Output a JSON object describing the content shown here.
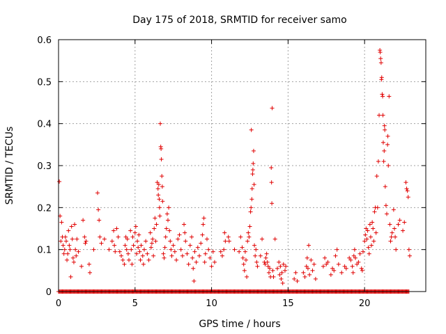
{
  "chart_data": {
    "type": "scatter",
    "title": "Day 175 of 2018, SRMTID for receiver samo",
    "xlabel": "GPS time / hours",
    "ylabel": "SRMTID / TECUs",
    "xlim": [
      0,
      24
    ],
    "ylim": [
      0,
      0.6
    ],
    "xticks": [
      0,
      5,
      10,
      15,
      20
    ],
    "xtick_labels": [
      "0",
      "5",
      "10",
      "15",
      "20"
    ],
    "yticks": [
      0,
      0.1,
      0.2,
      0.3,
      0.4,
      0.5,
      0.6
    ],
    "ytick_labels": [
      "0",
      "0.1",
      "0.2",
      "0.3",
      "0.4",
      "0.5",
      "0.6"
    ],
    "grid": true,
    "marker": "plus",
    "color": "#e00000",
    "series": [
      {
        "name": "SRMTID",
        "points": [
          [
            0.05,
            0.262
          ],
          [
            0.1,
            0.18
          ],
          [
            0.15,
            0.12
          ],
          [
            0.2,
            0.165
          ],
          [
            0.25,
            0.13
          ],
          [
            0.3,
            0.11
          ],
          [
            0.35,
            0.09
          ],
          [
            0.4,
            0.1
          ],
          [
            0.45,
            0.13
          ],
          [
            0.5,
            0.12
          ],
          [
            0.55,
            0.075
          ],
          [
            0.6,
            0.09
          ],
          [
            0.65,
            0.145
          ],
          [
            0.7,
            0.11
          ],
          [
            0.75,
            0.1
          ],
          [
            0.8,
            0.035
          ],
          [
            0.85,
            0.155
          ],
          [
            0.9,
            0.125
          ],
          [
            0.95,
            0.08
          ],
          [
            1.0,
            0.07
          ],
          [
            1.05,
            0.16
          ],
          [
            1.1,
            0.1
          ],
          [
            1.15,
            0.085
          ],
          [
            1.2,
            0.125
          ],
          [
            1.3,
            0.095
          ],
          [
            1.5,
            0.06
          ],
          [
            1.6,
            0.17
          ],
          [
            1.7,
            0.13
          ],
          [
            1.75,
            0.115
          ],
          [
            1.8,
            0.12
          ],
          [
            2.0,
            0.065
          ],
          [
            2.05,
            0.045
          ],
          [
            2.3,
            0.1
          ],
          [
            2.55,
            0.235
          ],
          [
            2.6,
            0.195
          ],
          [
            2.65,
            0.17
          ],
          [
            2.7,
            0.13
          ],
          [
            2.8,
            0.115
          ],
          [
            3.0,
            0.125
          ],
          [
            3.3,
            0.1
          ],
          [
            3.5,
            0.12
          ],
          [
            3.6,
            0.145
          ],
          [
            3.65,
            0.11
          ],
          [
            3.7,
            0.095
          ],
          [
            3.8,
            0.15
          ],
          [
            3.9,
            0.13
          ],
          [
            4.0,
            0.095
          ],
          [
            4.1,
            0.085
          ],
          [
            4.2,
            0.075
          ],
          [
            4.3,
            0.065
          ],
          [
            4.35,
            0.11
          ],
          [
            4.4,
            0.13
          ],
          [
            4.45,
            0.1
          ],
          [
            4.5,
            0.125
          ],
          [
            4.55,
            0.09
          ],
          [
            4.6,
            0.075
          ],
          [
            4.7,
            0.145
          ],
          [
            4.75,
            0.1
          ],
          [
            4.8,
            0.065
          ],
          [
            4.85,
            0.13
          ],
          [
            4.9,
            0.11
          ],
          [
            5.0,
            0.14
          ],
          [
            5.05,
            0.155
          ],
          [
            5.1,
            0.09
          ],
          [
            5.15,
            0.12
          ],
          [
            5.2,
            0.105
          ],
          [
            5.25,
            0.135
          ],
          [
            5.3,
            0.095
          ],
          [
            5.35,
            0.075
          ],
          [
            5.4,
            0.11
          ],
          [
            5.5,
            0.085
          ],
          [
            5.55,
            0.065
          ],
          [
            5.6,
            0.1
          ],
          [
            5.7,
            0.12
          ],
          [
            5.8,
            0.09
          ],
          [
            5.9,
            0.075
          ],
          [
            6.0,
            0.14
          ],
          [
            6.05,
            0.105
          ],
          [
            6.1,
            0.115
          ],
          [
            6.15,
            0.125
          ],
          [
            6.2,
            0.085
          ],
          [
            6.25,
            0.15
          ],
          [
            6.3,
            0.175
          ],
          [
            6.35,
            0.12
          ],
          [
            6.4,
            0.16
          ],
          [
            6.45,
            0.26
          ],
          [
            6.5,
            0.245
          ],
          [
            6.52,
            0.23
          ],
          [
            6.55,
            0.255
          ],
          [
            6.58,
            0.22
          ],
          [
            6.6,
            0.2
          ],
          [
            6.62,
            0.18
          ],
          [
            6.65,
            0.4
          ],
          [
            6.68,
            0.345
          ],
          [
            6.7,
            0.34
          ],
          [
            6.72,
            0.315
          ],
          [
            6.75,
            0.275
          ],
          [
            6.78,
            0.25
          ],
          [
            6.8,
            0.215
          ],
          [
            6.85,
            0.09
          ],
          [
            6.9,
            0.08
          ],
          [
            6.95,
            0.105
          ],
          [
            7.0,
            0.13
          ],
          [
            7.05,
            0.15
          ],
          [
            7.1,
            0.185
          ],
          [
            7.15,
            0.17
          ],
          [
            7.2,
            0.2
          ],
          [
            7.25,
            0.145
          ],
          [
            7.3,
            0.12
          ],
          [
            7.35,
            0.1
          ],
          [
            7.4,
            0.085
          ],
          [
            7.5,
            0.11
          ],
          [
            7.6,
            0.095
          ],
          [
            7.7,
            0.075
          ],
          [
            7.8,
            0.125
          ],
          [
            7.9,
            0.135
          ],
          [
            8.0,
            0.1
          ],
          [
            8.1,
            0.085
          ],
          [
            8.2,
            0.16
          ],
          [
            8.25,
            0.14
          ],
          [
            8.3,
            0.12
          ],
          [
            8.4,
            0.09
          ],
          [
            8.5,
            0.065
          ],
          [
            8.6,
            0.11
          ],
          [
            8.7,
            0.13
          ],
          [
            8.75,
            0.08
          ],
          [
            8.8,
            0.055
          ],
          [
            8.85,
            0.025
          ],
          [
            8.9,
            0.095
          ],
          [
            9.0,
            0.07
          ],
          [
            9.1,
            0.105
          ],
          [
            9.2,
            0.085
          ],
          [
            9.3,
            0.115
          ],
          [
            9.4,
            0.135
          ],
          [
            9.45,
            0.16
          ],
          [
            9.5,
            0.175
          ],
          [
            9.55,
            0.07
          ],
          [
            9.6,
            0.09
          ],
          [
            9.7,
            0.125
          ],
          [
            9.8,
            0.1
          ],
          [
            9.9,
            0.08
          ],
          [
            10.0,
            0.06
          ],
          [
            10.1,
            0.095
          ],
          [
            10.2,
            0.07
          ],
          [
            10.6,
            0.095
          ],
          [
            10.7,
            0.085
          ],
          [
            10.8,
            0.1
          ],
          [
            10.85,
            0.14
          ],
          [
            10.9,
            0.12
          ],
          [
            11.1,
            0.13
          ],
          [
            11.15,
            0.12
          ],
          [
            11.5,
            0.1
          ],
          [
            11.8,
            0.095
          ],
          [
            11.9,
            0.13
          ],
          [
            12.0,
            0.105
          ],
          [
            12.05,
            0.08
          ],
          [
            12.1,
            0.065
          ],
          [
            12.15,
            0.05
          ],
          [
            12.2,
            0.095
          ],
          [
            12.25,
            0.075
          ],
          [
            12.3,
            0.035
          ],
          [
            12.35,
            0.12
          ],
          [
            12.4,
            0.14
          ],
          [
            12.45,
            0.13
          ],
          [
            12.5,
            0.155
          ],
          [
            12.55,
            0.19
          ],
          [
            12.58,
            0.2
          ],
          [
            12.6,
            0.385
          ],
          [
            12.63,
            0.22
          ],
          [
            12.65,
            0.245
          ],
          [
            12.68,
            0.28
          ],
          [
            12.7,
            0.29
          ],
          [
            12.72,
            0.305
          ],
          [
            12.75,
            0.335
          ],
          [
            12.78,
            0.255
          ],
          [
            12.8,
            0.11
          ],
          [
            12.85,
            0.085
          ],
          [
            12.9,
            0.1
          ],
          [
            12.95,
            0.07
          ],
          [
            13.0,
            0.06
          ],
          [
            13.2,
            0.085
          ],
          [
            13.3,
            0.125
          ],
          [
            13.45,
            0.07
          ],
          [
            13.5,
            0.065
          ],
          [
            13.55,
            0.08
          ],
          [
            13.6,
            0.09
          ],
          [
            13.65,
            0.07
          ],
          [
            13.7,
            0.06
          ],
          [
            13.75,
            0.045
          ],
          [
            13.8,
            0.055
          ],
          [
            13.85,
            0.035
          ],
          [
            13.9,
            0.295
          ],
          [
            13.92,
            0.26
          ],
          [
            13.94,
            0.21
          ],
          [
            13.96,
            0.437
          ],
          [
            14.0,
            0.05
          ],
          [
            14.05,
            0.035
          ],
          [
            14.15,
            0.125
          ],
          [
            14.3,
            0.055
          ],
          [
            14.4,
            0.07
          ],
          [
            14.45,
            0.04
          ],
          [
            14.5,
            0.06
          ],
          [
            14.55,
            0.03
          ],
          [
            14.6,
            0.045
          ],
          [
            14.65,
            0.02
          ],
          [
            14.7,
            0.065
          ],
          [
            14.8,
            0.05
          ],
          [
            14.85,
            0.06
          ],
          [
            15.4,
            0.03
          ],
          [
            15.5,
            0.045
          ],
          [
            15.6,
            0.025
          ],
          [
            16.0,
            0.045
          ],
          [
            16.1,
            0.035
          ],
          [
            16.2,
            0.06
          ],
          [
            16.25,
            0.08
          ],
          [
            16.3,
            0.055
          ],
          [
            16.35,
            0.11
          ],
          [
            16.4,
            0.04
          ],
          [
            16.5,
            0.075
          ],
          [
            16.6,
            0.05
          ],
          [
            16.7,
            0.065
          ],
          [
            16.8,
            0.03
          ],
          [
            17.3,
            0.06
          ],
          [
            17.4,
            0.08
          ],
          [
            17.5,
            0.065
          ],
          [
            17.6,
            0.07
          ],
          [
            17.8,
            0.04
          ],
          [
            17.9,
            0.055
          ],
          [
            18.0,
            0.05
          ],
          [
            18.1,
            0.085
          ],
          [
            18.2,
            0.1
          ],
          [
            18.3,
            0.065
          ],
          [
            18.5,
            0.045
          ],
          [
            18.7,
            0.06
          ],
          [
            18.8,
            0.055
          ],
          [
            19.0,
            0.08
          ],
          [
            19.1,
            0.075
          ],
          [
            19.2,
            0.06
          ],
          [
            19.25,
            0.045
          ],
          [
            19.3,
            0.085
          ],
          [
            19.35,
            0.1
          ],
          [
            19.4,
            0.08
          ],
          [
            19.5,
            0.065
          ],
          [
            19.6,
            0.07
          ],
          [
            19.7,
            0.09
          ],
          [
            19.8,
            0.055
          ],
          [
            19.85,
            0.05
          ],
          [
            19.9,
            0.095
          ],
          [
            20.0,
            0.12
          ],
          [
            20.05,
            0.135
          ],
          [
            20.1,
            0.15
          ],
          [
            20.15,
            0.125
          ],
          [
            20.2,
            0.145
          ],
          [
            20.25,
            0.105
          ],
          [
            20.3,
            0.09
          ],
          [
            20.35,
            0.16
          ],
          [
            20.4,
            0.13
          ],
          [
            20.45,
            0.11
          ],
          [
            20.5,
            0.165
          ],
          [
            20.55,
            0.15
          ],
          [
            20.6,
            0.12
          ],
          [
            20.65,
            0.19
          ],
          [
            20.7,
            0.2
          ],
          [
            20.75,
            0.14
          ],
          [
            20.8,
            0.275
          ],
          [
            20.85,
            0.2
          ],
          [
            20.9,
            0.31
          ],
          [
            20.95,
            0.42
          ],
          [
            21.0,
            0.575
          ],
          [
            21.02,
            0.57
          ],
          [
            21.05,
            0.555
          ],
          [
            21.08,
            0.545
          ],
          [
            21.1,
            0.505
          ],
          [
            21.12,
            0.51
          ],
          [
            21.15,
            0.47
          ],
          [
            21.18,
            0.465
          ],
          [
            21.2,
            0.42
          ],
          [
            21.22,
            0.355
          ],
          [
            21.25,
            0.31
          ],
          [
            21.28,
            0.335
          ],
          [
            21.3,
            0.395
          ],
          [
            21.32,
            0.385
          ],
          [
            21.35,
            0.25
          ],
          [
            21.4,
            0.205
          ],
          [
            21.45,
            0.185
          ],
          [
            21.5,
            0.35
          ],
          [
            21.52,
            0.37
          ],
          [
            21.55,
            0.3
          ],
          [
            21.6,
            0.465
          ],
          [
            21.65,
            0.16
          ],
          [
            21.7,
            0.12
          ],
          [
            21.75,
            0.13
          ],
          [
            21.8,
            0.14
          ],
          [
            21.9,
            0.195
          ],
          [
            21.95,
            0.15
          ],
          [
            22.0,
            0.13
          ],
          [
            22.05,
            0.1
          ],
          [
            22.2,
            0.16
          ],
          [
            22.3,
            0.17
          ],
          [
            22.5,
            0.145
          ],
          [
            22.6,
            0.165
          ],
          [
            22.7,
            0.26
          ],
          [
            22.75,
            0.245
          ],
          [
            22.8,
            0.24
          ],
          [
            22.85,
            0.225
          ],
          [
            22.9,
            0.1
          ],
          [
            22.95,
            0.085
          ]
        ],
        "zero_baseline_x_range": [
          0,
          22.9
        ]
      }
    ]
  }
}
